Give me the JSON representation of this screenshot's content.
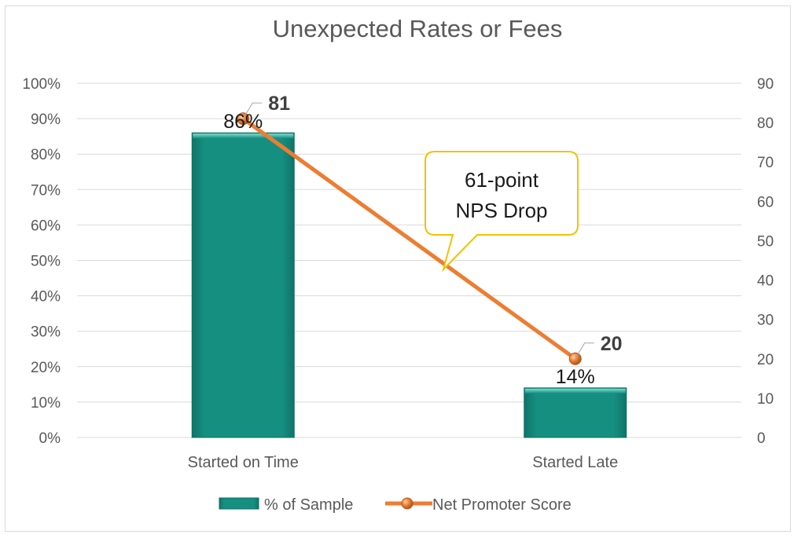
{
  "chart_data": {
    "type": "bar",
    "title": "Unexpected Rates or Fees",
    "categories": [
      "Started on Time",
      "Started Late"
    ],
    "series": [
      {
        "name": "% of Sample",
        "type": "bar",
        "axis": "left",
        "values": [
          86,
          14
        ],
        "labels": [
          "86%",
          "14%"
        ],
        "color": "#148f80"
      },
      {
        "name": "Net Promoter Score",
        "type": "line",
        "axis": "right",
        "values": [
          81,
          20
        ],
        "labels": [
          "81",
          "20"
        ],
        "color": "#ed7d31"
      }
    ],
    "left_axis": {
      "ylim": [
        0,
        100
      ],
      "ticks": [
        "0%",
        "10%",
        "20%",
        "30%",
        "40%",
        "50%",
        "60%",
        "70%",
        "80%",
        "90%",
        "100%"
      ]
    },
    "right_axis": {
      "ylim": [
        0,
        90
      ],
      "ticks": [
        "0",
        "10",
        "20",
        "30",
        "40",
        "50",
        "60",
        "70",
        "80",
        "90"
      ]
    },
    "grid": true,
    "legend": "bottom",
    "annotation": {
      "line1": "61-point",
      "line2": "NPS Drop"
    }
  }
}
